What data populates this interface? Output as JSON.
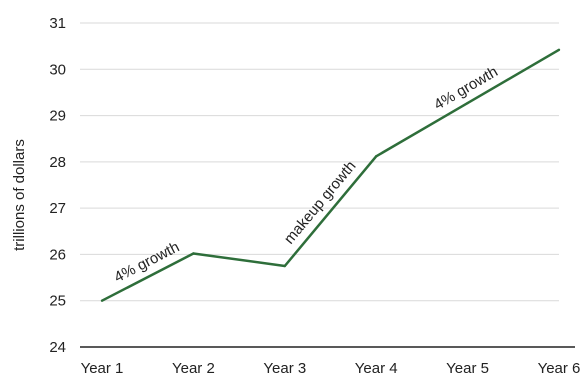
{
  "chart_data": {
    "type": "line",
    "title": "",
    "xlabel": "",
    "ylabel": "trillions of dollars",
    "categories": [
      "Year 1",
      "Year 2",
      "Year 3",
      "Year 4",
      "Year 5",
      "Year 6"
    ],
    "series": [
      {
        "values": [
          25.0,
          26.02,
          25.75,
          28.12,
          29.27,
          30.42
        ]
      }
    ],
    "ylim": [
      24,
      31
    ],
    "yticks": [
      24,
      25,
      26,
      27,
      28,
      29,
      30,
      31
    ],
    "grid": true,
    "legend": "none",
    "line_color": "#2e6e3a",
    "annotations": [
      {
        "text": "4% growth",
        "between": [
          "Year 1",
          "Year 2"
        ]
      },
      {
        "text": "makeup growth",
        "between": [
          "Year 3",
          "Year 4"
        ]
      },
      {
        "text": "4% growth",
        "between": [
          "Year 4",
          "Year 6"
        ]
      }
    ]
  }
}
